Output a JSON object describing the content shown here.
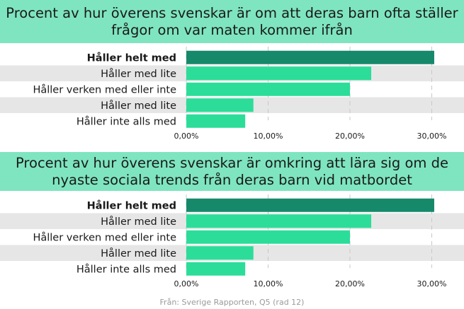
{
  "source": "Från: Sverige Rapporten, Q5 (rad 12)",
  "colors": {
    "header_bg": "#7ee5c0",
    "bar": "#2bdd99",
    "bar_highlight": "#16896a",
    "row_stripe": "#e6e6e6"
  },
  "chart_data": [
    {
      "type": "bar",
      "orientation": "horizontal",
      "title": "Procent av hur överens svenskar är om att deras barn ofta ställer frågor om var maten kommer ifrån",
      "categories": [
        "Håller helt med",
        "Håller med lite",
        "Håller verken med eller inte",
        "Håller med lite",
        "Håller inte alls med"
      ],
      "values": [
        30.3,
        22.6,
        20.0,
        8.2,
        7.2
      ],
      "highlight_index": 0,
      "xlim": [
        0,
        30
      ],
      "xticks": [
        "0,00%",
        "10,00%",
        "20,00%",
        "30,00%"
      ],
      "grid": "vertical dashed"
    },
    {
      "type": "bar",
      "orientation": "horizontal",
      "title": "Procent av hur överens svenskar är omkring att lära sig om de nyaste sociala trends från deras barn vid matbordet",
      "categories": [
        "Håller helt med",
        "Håller med lite",
        "Håller verken med eller inte",
        "Håller med lite",
        "Håller inte alls med"
      ],
      "values": [
        30.3,
        22.6,
        20.0,
        8.2,
        7.2
      ],
      "highlight_index": 0,
      "xlim": [
        0,
        30
      ],
      "xticks": [
        "0,00%",
        "10,00%",
        "20,00%",
        "30,00%"
      ],
      "grid": "vertical dashed"
    }
  ]
}
